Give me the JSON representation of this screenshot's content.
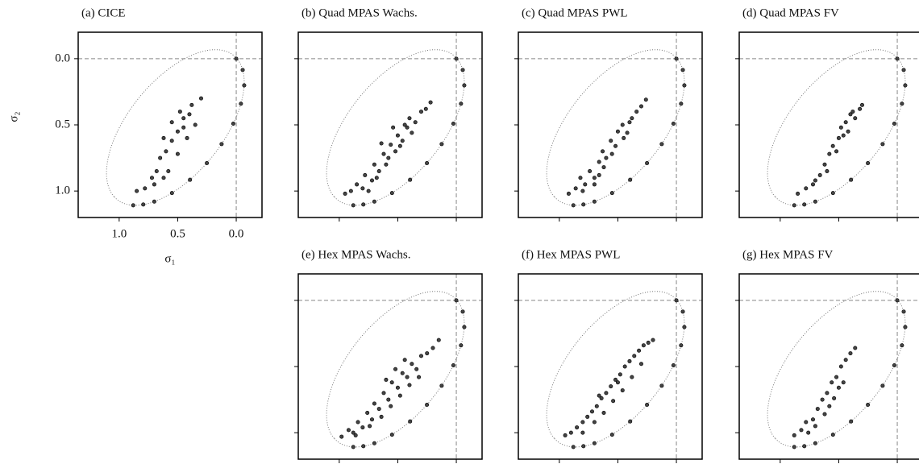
{
  "chart_data": [
    {
      "type": "scatter",
      "title": "(a) CICE",
      "xlabel": "σ₁",
      "ylabel": "σ₂",
      "tick_labels": true,
      "xlim": [
        1.35,
        -0.22
      ],
      "ylim": [
        1.2,
        -0.2
      ],
      "xticks": [
        {
          "value": 1,
          "label": "1.0"
        },
        {
          "value": 0.5,
          "label": "0.5"
        },
        {
          "value": 0,
          "label": "0.0"
        }
      ],
      "yticks": [
        {
          "value": 0,
          "label": "0.0"
        },
        {
          "value": 0.5,
          "label": "0.5"
        },
        {
          "value": 1,
          "label": "1.0"
        }
      ],
      "hline": 0,
      "vline": 0,
      "ellipse": {
        "cx": 0.52,
        "cy": 0.52,
        "a": 0.74,
        "b": 0.38
      },
      "series": [
        {
          "color": "#444444",
          "x": [
            0.0,
            -0.055,
            -0.068,
            -0.04,
            0.025,
            0.125,
            0.251,
            0.395,
            0.549,
            0.7,
            0.794,
            0.88
          ],
          "y": [
            0.0,
            0.085,
            0.202,
            0.34,
            0.491,
            0.645,
            0.789,
            0.915,
            1.015,
            1.08,
            1.102,
            1.108
          ]
        },
        {
          "color": "#444444",
          "x": [
            0.85,
            0.78,
            0.72,
            0.68,
            0.65,
            0.6,
            0.62,
            0.55,
            0.5,
            0.55,
            0.45,
            0.48,
            0.4,
            0.38,
            0.3,
            0.35,
            0.42,
            0.5,
            0.58,
            0.45,
            0.7,
            0.62
          ],
          "y": [
            1.0,
            0.98,
            0.9,
            0.85,
            0.75,
            0.7,
            0.6,
            0.62,
            0.55,
            0.48,
            0.45,
            0.4,
            0.42,
            0.35,
            0.3,
            0.5,
            0.6,
            0.72,
            0.85,
            0.52,
            0.95,
            0.9
          ]
        }
      ]
    },
    {
      "type": "scatter",
      "title": "(b) Quad MPAS Wachs.",
      "tick_labels": false,
      "xlim": [
        1.35,
        -0.22
      ],
      "ylim": [
        1.2,
        -0.2
      ],
      "xticks": [
        1,
        0.5,
        0
      ],
      "yticks": [
        0,
        0.5,
        1
      ],
      "hline": 0,
      "vline": 0,
      "ellipse": {
        "cx": 0.52,
        "cy": 0.52,
        "a": 0.74,
        "b": 0.38
      },
      "series": [
        {
          "color": "#444444",
          "x": [
            0.0,
            -0.055,
            -0.068,
            -0.04,
            0.025,
            0.125,
            0.251,
            0.395,
            0.549,
            0.7,
            0.794,
            0.88
          ],
          "y": [
            0.0,
            0.085,
            0.202,
            0.34,
            0.491,
            0.645,
            0.789,
            0.915,
            1.015,
            1.08,
            1.102,
            1.108
          ]
        },
        {
          "color": "#444444",
          "x": [
            0.95,
            0.9,
            0.85,
            0.8,
            0.78,
            0.72,
            0.7,
            0.66,
            0.62,
            0.6,
            0.56,
            0.52,
            0.5,
            0.46,
            0.42,
            0.4,
            0.35,
            0.3,
            0.26,
            0.22,
            0.68,
            0.58,
            0.48,
            0.38,
            0.75,
            0.64,
            0.54,
            0.44
          ],
          "y": [
            1.02,
            1.0,
            0.95,
            0.98,
            0.88,
            0.92,
            0.8,
            0.85,
            0.72,
            0.8,
            0.65,
            0.7,
            0.58,
            0.62,
            0.52,
            0.45,
            0.48,
            0.4,
            0.38,
            0.33,
            0.9,
            0.75,
            0.66,
            0.56,
            1.0,
            0.64,
            0.52,
            0.5
          ]
        }
      ]
    },
    {
      "type": "scatter",
      "title": "(c) Quad MPAS PWL",
      "tick_labels": false,
      "xlim": [
        1.35,
        -0.22
      ],
      "ylim": [
        1.2,
        -0.2
      ],
      "xticks": [
        1,
        0.5,
        0
      ],
      "yticks": [
        0,
        0.5,
        1
      ],
      "hline": 0,
      "vline": 0,
      "ellipse": {
        "cx": 0.52,
        "cy": 0.52,
        "a": 0.74,
        "b": 0.38
      },
      "series": [
        {
          "color": "#444444",
          "x": [
            0.0,
            -0.055,
            -0.068,
            -0.04,
            0.025,
            0.125,
            0.251,
            0.395,
            0.549,
            0.7,
            0.794,
            0.88
          ],
          "y": [
            0.0,
            0.085,
            0.202,
            0.34,
            0.491,
            0.645,
            0.789,
            0.915,
            1.015,
            1.08,
            1.102,
            1.108
          ]
        },
        {
          "color": "#444444",
          "x": [
            0.92,
            0.86,
            0.82,
            0.78,
            0.74,
            0.7,
            0.66,
            0.63,
            0.6,
            0.56,
            0.52,
            0.5,
            0.46,
            0.42,
            0.38,
            0.34,
            0.3,
            0.26,
            0.7,
            0.62,
            0.55,
            0.45,
            0.8,
            0.66,
            0.4
          ],
          "y": [
            1.02,
            0.98,
            0.9,
            0.95,
            0.85,
            0.9,
            0.78,
            0.7,
            0.75,
            0.62,
            0.66,
            0.55,
            0.5,
            0.56,
            0.45,
            0.4,
            0.36,
            0.31,
            0.95,
            0.82,
            0.72,
            0.6,
            1.0,
            0.88,
            0.48
          ]
        }
      ]
    },
    {
      "type": "scatter",
      "title": "(d) Quad MPAS FV",
      "tick_labels": false,
      "xlim": [
        1.35,
        -0.22
      ],
      "ylim": [
        1.2,
        -0.2
      ],
      "xticks": [
        1,
        0.5,
        0
      ],
      "yticks": [
        0,
        0.5,
        1
      ],
      "hline": 0,
      "vline": 0,
      "ellipse": {
        "cx": 0.52,
        "cy": 0.52,
        "a": 0.74,
        "b": 0.38
      },
      "series": [
        {
          "color": "#444444",
          "x": [
            0.0,
            -0.055,
            -0.068,
            -0.04,
            0.025,
            0.125,
            0.251,
            0.395,
            0.549,
            0.7,
            0.794,
            0.88
          ],
          "y": [
            0.0,
            0.085,
            0.202,
            0.34,
            0.491,
            0.645,
            0.789,
            0.915,
            1.015,
            1.08,
            1.102,
            1.108
          ]
        },
        {
          "color": "#444444",
          "x": [
            0.85,
            0.78,
            0.72,
            0.66,
            0.62,
            0.58,
            0.55,
            0.5,
            0.48,
            0.44,
            0.4,
            0.36,
            0.32,
            0.3,
            0.6,
            0.52,
            0.46,
            0.7,
            0.42,
            0.38
          ],
          "y": [
            1.02,
            0.98,
            0.95,
            0.88,
            0.8,
            0.72,
            0.66,
            0.6,
            0.52,
            0.48,
            0.42,
            0.45,
            0.38,
            0.35,
            0.85,
            0.7,
            0.58,
            0.92,
            0.55,
            0.4
          ]
        }
      ]
    },
    {
      "type": "scatter",
      "title": "(e) Hex MPAS Wachs.",
      "tick_labels": false,
      "xlim": [
        1.35,
        -0.22
      ],
      "ylim": [
        1.2,
        -0.2
      ],
      "xticks": [
        1,
        0.5,
        0
      ],
      "yticks": [
        0,
        0.5,
        1
      ],
      "hline": 0,
      "vline": 0,
      "ellipse": {
        "cx": 0.52,
        "cy": 0.52,
        "a": 0.74,
        "b": 0.38
      },
      "series": [
        {
          "color": "#444444",
          "x": [
            0.0,
            -0.055,
            -0.068,
            -0.04,
            0.025,
            0.125,
            0.251,
            0.395,
            0.549,
            0.7,
            0.794,
            0.88
          ],
          "y": [
            0.0,
            0.085,
            0.202,
            0.34,
            0.491,
            0.645,
            0.789,
            0.915,
            1.015,
            1.08,
            1.102,
            1.108
          ]
        },
        {
          "color": "#444444",
          "x": [
            0.98,
            0.92,
            0.88,
            0.84,
            0.8,
            0.76,
            0.72,
            0.7,
            0.66,
            0.62,
            0.58,
            0.55,
            0.5,
            0.46,
            0.42,
            0.38,
            0.34,
            0.3,
            0.25,
            0.2,
            0.15,
            0.86,
            0.74,
            0.64,
            0.56,
            0.48,
            0.4,
            0.32,
            0.6,
            0.52,
            0.44
          ],
          "y": [
            1.03,
            0.98,
            1.0,
            0.92,
            0.96,
            0.85,
            0.9,
            0.78,
            0.82,
            0.7,
            0.75,
            0.62,
            0.66,
            0.55,
            0.58,
            0.48,
            0.52,
            0.42,
            0.4,
            0.36,
            0.3,
            1.02,
            0.95,
            0.88,
            0.8,
            0.72,
            0.64,
            0.58,
            0.6,
            0.52,
            0.45
          ]
        }
      ]
    },
    {
      "type": "scatter",
      "title": "(f) Hex MPAS PWL",
      "tick_labels": false,
      "xlim": [
        1.35,
        -0.22
      ],
      "ylim": [
        1.2,
        -0.2
      ],
      "xticks": [
        1,
        0.5,
        0
      ],
      "yticks": [
        0,
        0.5,
        1
      ],
      "hline": 0,
      "vline": 0,
      "ellipse": {
        "cx": 0.52,
        "cy": 0.52,
        "a": 0.74,
        "b": 0.38
      },
      "series": [
        {
          "color": "#444444",
          "x": [
            0.0,
            -0.055,
            -0.068,
            -0.04,
            0.025,
            0.125,
            0.251,
            0.395,
            0.549,
            0.7,
            0.794,
            0.88
          ],
          "y": [
            0.0,
            0.085,
            0.202,
            0.34,
            0.491,
            0.645,
            0.789,
            0.915,
            1.015,
            1.08,
            1.102,
            1.108
          ]
        },
        {
          "color": "#444444",
          "x": [
            0.95,
            0.9,
            0.85,
            0.8,
            0.76,
            0.72,
            0.68,
            0.64,
            0.6,
            0.56,
            0.52,
            0.48,
            0.44,
            0.4,
            0.36,
            0.32,
            0.28,
            0.24,
            0.2,
            0.8,
            0.7,
            0.62,
            0.54,
            0.46,
            0.38,
            0.3,
            0.66,
            0.5
          ],
          "y": [
            1.02,
            1.0,
            0.96,
            0.92,
            0.88,
            0.84,
            0.8,
            0.74,
            0.7,
            0.65,
            0.6,
            0.56,
            0.5,
            0.46,
            0.42,
            0.38,
            0.34,
            0.32,
            0.3,
            1.0,
            0.92,
            0.85,
            0.76,
            0.68,
            0.58,
            0.48,
            0.72,
            0.62
          ]
        }
      ]
    },
    {
      "type": "scatter",
      "title": "(g) Hex MPAS FV",
      "tick_labels": false,
      "xlim": [
        1.35,
        -0.22
      ],
      "ylim": [
        1.2,
        -0.2
      ],
      "xticks": [
        1,
        0.5,
        0
      ],
      "yticks": [
        0,
        0.5,
        1
      ],
      "hline": 0,
      "vline": 0,
      "ellipse": {
        "cx": 0.52,
        "cy": 0.52,
        "a": 0.74,
        "b": 0.38
      },
      "series": [
        {
          "color": "#444444",
          "x": [
            0.0,
            -0.055,
            -0.068,
            -0.04,
            0.025,
            0.125,
            0.251,
            0.395,
            0.549,
            0.7,
            0.794,
            0.88
          ],
          "y": [
            0.0,
            0.085,
            0.202,
            0.34,
            0.491,
            0.645,
            0.789,
            0.915,
            1.015,
            1.08,
            1.102,
            1.108
          ]
        },
        {
          "color": "#444444",
          "x": [
            0.88,
            0.82,
            0.78,
            0.72,
            0.68,
            0.64,
            0.6,
            0.56,
            0.52,
            0.48,
            0.44,
            0.4,
            0.36,
            0.7,
            0.62,
            0.54,
            0.46,
            0.76,
            0.58,
            0.5
          ],
          "y": [
            1.02,
            0.98,
            0.92,
            0.9,
            0.82,
            0.75,
            0.7,
            0.62,
            0.58,
            0.5,
            0.45,
            0.4,
            0.36,
            0.95,
            0.86,
            0.74,
            0.62,
            1.0,
            0.8,
            0.66
          ]
        }
      ]
    }
  ]
}
